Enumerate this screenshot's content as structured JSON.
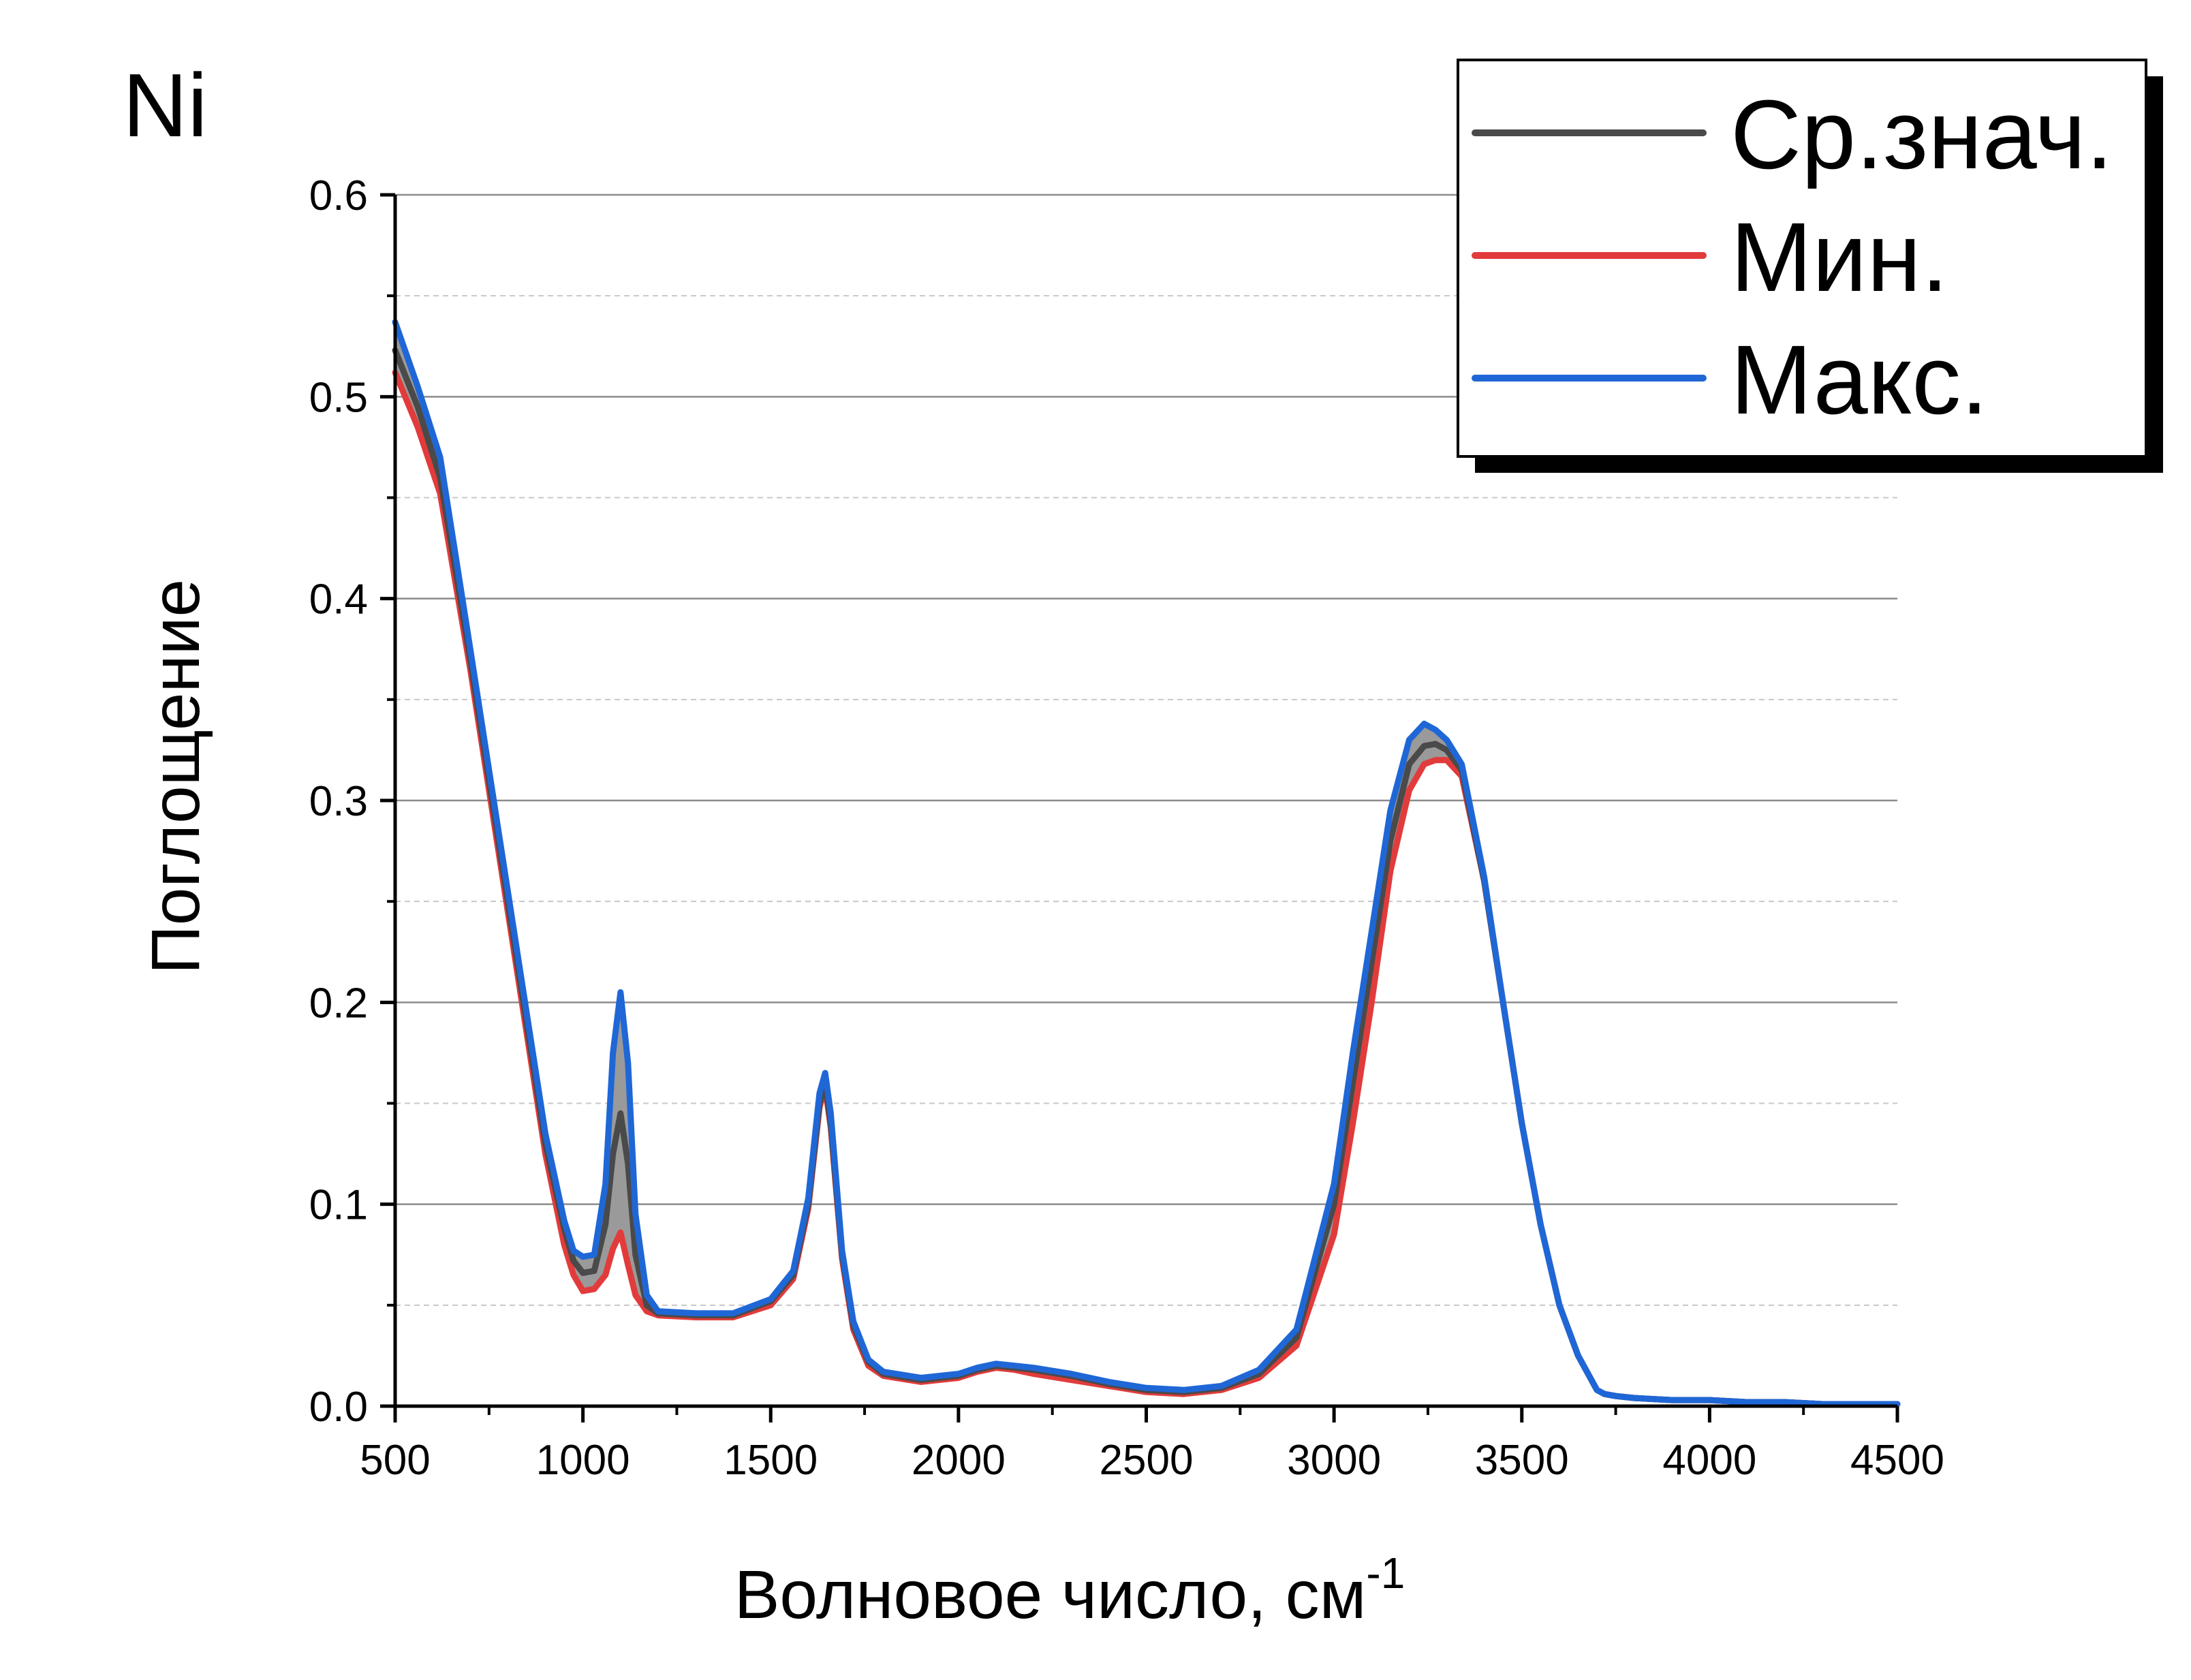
{
  "chart_data": {
    "type": "line",
    "panel_label": "Ni",
    "xlabel": "Волновое число, см",
    "xlabel_superscript": "-1",
    "ylabel": "Поглощение",
    "xlim": [
      500,
      4500
    ],
    "ylim": [
      0,
      0.6
    ],
    "x_ticks": [
      500,
      1000,
      1500,
      2000,
      2500,
      3000,
      3500,
      4000,
      4500
    ],
    "y_ticks": [
      "0.0",
      "0.1",
      "0.2",
      "0.3",
      "0.4",
      "0.5",
      "0.6"
    ],
    "y_tick_values": [
      0,
      0.1,
      0.2,
      0.3,
      0.4,
      0.5,
      0.6
    ],
    "y_minor_gridlines": [
      0.05,
      0.15,
      0.25,
      0.35,
      0.45,
      0.55
    ],
    "grid": true,
    "legend_placement": "top-right",
    "band_fill_color": "#9a9a9a",
    "x": [
      500,
      560,
      620,
      700,
      800,
      900,
      950,
      975,
      1000,
      1030,
      1060,
      1080,
      1100,
      1120,
      1140,
      1170,
      1200,
      1300,
      1400,
      1500,
      1560,
      1600,
      1630,
      1645,
      1660,
      1690,
      1720,
      1760,
      1800,
      1900,
      2000,
      2050,
      2100,
      2150,
      2200,
      2300,
      2400,
      2500,
      2600,
      2700,
      2800,
      2900,
      3000,
      3050,
      3100,
      3150,
      3200,
      3240,
      3270,
      3300,
      3340,
      3400,
      3450,
      3500,
      3550,
      3600,
      3650,
      3700,
      3720,
      3750,
      3800,
      3900,
      4000,
      4100,
      4200,
      4300,
      4400,
      4500
    ],
    "series": [
      {
        "name": "Ср.знач.",
        "color": "#4a4a4a",
        "values": [
          0.523,
          0.495,
          0.46,
          0.37,
          0.25,
          0.13,
          0.088,
          0.072,
          0.066,
          0.067,
          0.09,
          0.125,
          0.145,
          0.12,
          0.075,
          0.05,
          0.046,
          0.045,
          0.045,
          0.052,
          0.065,
          0.1,
          0.15,
          0.16,
          0.14,
          0.075,
          0.04,
          0.022,
          0.016,
          0.013,
          0.015,
          0.018,
          0.02,
          0.019,
          0.018,
          0.015,
          0.011,
          0.008,
          0.007,
          0.009,
          0.016,
          0.034,
          0.1,
          0.16,
          0.22,
          0.28,
          0.318,
          0.327,
          0.328,
          0.325,
          0.315,
          0.26,
          0.2,
          0.14,
          0.09,
          0.05,
          0.025,
          0.008,
          0.006,
          0.005,
          0.004,
          0.003,
          0.003,
          0.002,
          0.002,
          0.001,
          0.001,
          0.001
        ]
      },
      {
        "name": "Мин.",
        "color": "#e23b3b",
        "values": [
          0.512,
          0.485,
          0.452,
          0.365,
          0.245,
          0.125,
          0.08,
          0.065,
          0.057,
          0.058,
          0.065,
          0.078,
          0.086,
          0.07,
          0.055,
          0.047,
          0.045,
          0.044,
          0.044,
          0.05,
          0.063,
          0.098,
          0.148,
          0.158,
          0.138,
          0.073,
          0.038,
          0.02,
          0.015,
          0.012,
          0.014,
          0.017,
          0.019,
          0.018,
          0.016,
          0.013,
          0.01,
          0.007,
          0.006,
          0.008,
          0.014,
          0.03,
          0.085,
          0.14,
          0.2,
          0.265,
          0.305,
          0.318,
          0.32,
          0.32,
          0.312,
          0.26,
          0.2,
          0.14,
          0.09,
          0.05,
          0.025,
          0.008,
          0.006,
          0.005,
          0.004,
          0.003,
          0.003,
          0.002,
          0.002,
          0.001,
          0.001,
          0.001
        ]
      },
      {
        "name": "Макс.",
        "color": "#1f67d6",
        "values": [
          0.537,
          0.505,
          0.47,
          0.375,
          0.255,
          0.135,
          0.092,
          0.077,
          0.074,
          0.075,
          0.11,
          0.175,
          0.205,
          0.17,
          0.095,
          0.055,
          0.047,
          0.046,
          0.046,
          0.053,
          0.067,
          0.103,
          0.155,
          0.165,
          0.145,
          0.077,
          0.042,
          0.023,
          0.017,
          0.014,
          0.016,
          0.019,
          0.021,
          0.02,
          0.019,
          0.016,
          0.012,
          0.009,
          0.008,
          0.01,
          0.018,
          0.038,
          0.11,
          0.175,
          0.235,
          0.295,
          0.33,
          0.338,
          0.335,
          0.33,
          0.318,
          0.262,
          0.2,
          0.14,
          0.09,
          0.05,
          0.025,
          0.008,
          0.006,
          0.005,
          0.004,
          0.003,
          0.003,
          0.002,
          0.002,
          0.001,
          0.001,
          0.001
        ]
      }
    ]
  }
}
